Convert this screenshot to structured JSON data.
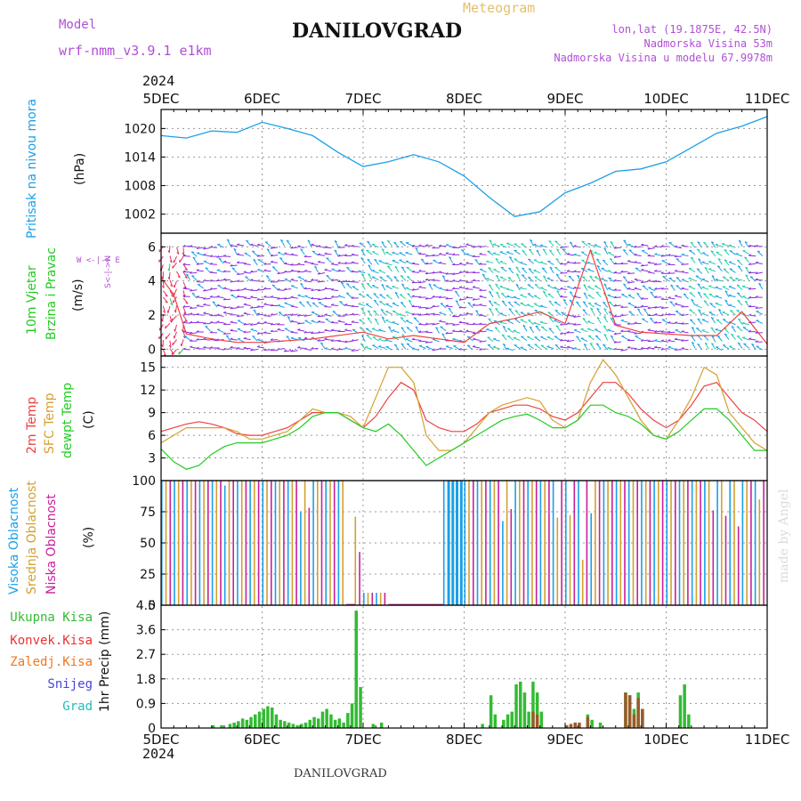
{
  "header": {
    "model_label": "Model",
    "model_value": "wrf-nmm_v3.9.1 e1km",
    "title": "DANILOVGRAD",
    "meteogram": "Meteogram",
    "lonlat": "lon,lat (19.1875E, 42.5N)",
    "alt": "Nadmorska Visina 53m",
    "alt_model": "Nadmorska Visina u modelu 67.9978m",
    "year_top": "2024",
    "year_bottom": "2024",
    "footer": "DANILOVGRAD",
    "watermark": "made by Angel"
  },
  "days": [
    "5DEC",
    "6DEC",
    "7DEC",
    "8DEC",
    "9DEC",
    "10DEC",
    "11DEC"
  ],
  "panel_labels": {
    "pressure": {
      "name": "Pritisak na nivou mora",
      "unit": "(hPa)"
    },
    "wind": {
      "name1": "10m Vjetar",
      "name2": "Brzina i Pravac",
      "unit": "(m/s)",
      "compass": "W <-|-> E",
      "compass_v": "S<-|->N"
    },
    "temp": {
      "t2": "2m Temp",
      "sfc": "SFC Temp",
      "dew": "dewpt Temp",
      "unit": "(C)"
    },
    "cloud": {
      "high": "Visoka Oblacnost",
      "mid": "Srednja Oblacnost",
      "low": "Niska Oblacnost",
      "unit": "(%)"
    },
    "precip": {
      "unit": "1hr Precip (mm)",
      "total": "Ukupna Kisa",
      "conv": "Konvek.Kisa",
      "frozen": "Zaledj.Kisa",
      "snow": "Snijeg",
      "hail": "Grad"
    }
  },
  "colors": {
    "pressure": "#1ba0e8",
    "t2": "#ee4040",
    "sfc": "#d4a030",
    "dew": "#22cc22",
    "high": "#1aa0e8",
    "mid": "#d4a030",
    "low": "#c8209a",
    "total": "#33bb33",
    "conv": "#ee3030",
    "frozen": "#ee7722",
    "snow": "#4444dd",
    "hail": "#22bbbb",
    "title_purple": "#b04fd6",
    "meteogram_gold": "#e3bf6a"
  },
  "chart_data": [
    {
      "type": "line",
      "name": "pressure",
      "ylim": [
        998,
        1024
      ],
      "yticks": [
        "1002",
        "1008",
        "1014",
        "1020"
      ],
      "x": [
        0,
        6,
        12,
        18,
        24,
        30,
        36,
        42,
        48,
        54,
        60,
        66,
        72,
        78,
        84,
        90,
        96,
        102,
        108,
        114,
        120,
        126,
        132,
        138,
        144
      ],
      "values": [
        1018.5,
        1018,
        1019.5,
        1019.2,
        1021.3,
        1020,
        1018.5,
        1015,
        1012,
        1013,
        1014.5,
        1013,
        1010,
        1005.5,
        1001.5,
        1002.5,
        1006.5,
        1008.5,
        1011,
        1011.5,
        1013,
        1016,
        1019,
        1020.5,
        1022.5
      ]
    },
    {
      "type": "line",
      "name": "wind",
      "ylim": [
        -0.4,
        6.8
      ],
      "yticks": [
        "0",
        "2",
        "4",
        "6"
      ],
      "x": [
        0,
        3,
        6,
        12,
        18,
        24,
        30,
        36,
        42,
        48,
        54,
        60,
        66,
        72,
        78,
        84,
        90,
        96,
        102,
        108,
        114,
        120,
        126,
        132,
        138,
        144
      ],
      "values": [
        4.2,
        3.2,
        0.9,
        0.6,
        0.4,
        0.4,
        0.5,
        0.6,
        0.8,
        1.0,
        0.6,
        0.8,
        0.6,
        0.4,
        1.5,
        1.8,
        2.2,
        1.5,
        5.8,
        1.4,
        1.0,
        0.9,
        0.8,
        0.8,
        2.2,
        0.3
      ]
    },
    {
      "type": "line",
      "name": "temperature",
      "ylim": [
        0,
        16.5
      ],
      "yticks": [
        "3",
        "6",
        "9",
        "12",
        "15"
      ],
      "x": [
        0,
        3,
        6,
        9,
        12,
        15,
        18,
        21,
        24,
        27,
        30,
        33,
        36,
        39,
        42,
        45,
        48,
        51,
        54,
        57,
        60,
        63,
        66,
        69,
        72,
        75,
        78,
        81,
        84,
        87,
        90,
        93,
        96,
        99,
        102,
        105,
        108,
        111,
        114,
        117,
        120,
        123,
        126,
        129,
        132,
        135,
        138,
        141,
        144
      ],
      "series": [
        {
          "key": "t2",
          "values": [
            6.5,
            7,
            7.5,
            7.8,
            7.5,
            7,
            6.2,
            6,
            6,
            6.5,
            7,
            8,
            9,
            9,
            9,
            8,
            7,
            8.5,
            11,
            13,
            12,
            8,
            7,
            6.5,
            6.5,
            7.5,
            9,
            9.5,
            10,
            10,
            9.5,
            8.5,
            8,
            9,
            11,
            13,
            13,
            11.5,
            9.5,
            8,
            7,
            8,
            10,
            12.5,
            13,
            11,
            9,
            8,
            6.5
          ]
        },
        {
          "key": "sfc",
          "values": [
            5,
            6,
            7,
            7,
            7,
            7,
            6.5,
            5.5,
            5.5,
            6,
            6.5,
            8,
            9.5,
            9,
            9,
            8.5,
            7,
            11,
            15,
            15,
            13,
            6,
            4,
            4,
            5,
            7,
            9,
            10,
            10.5,
            11,
            10.5,
            8,
            7,
            8,
            13,
            16,
            14,
            11,
            8,
            6,
            5.5,
            8,
            11,
            15,
            14,
            9,
            7,
            5,
            4
          ]
        },
        {
          "key": "dew",
          "values": [
            4.2,
            2.5,
            1.5,
            2,
            3.5,
            4.5,
            5,
            5,
            5,
            5.5,
            6,
            7,
            8.5,
            9,
            9,
            8,
            7,
            6.5,
            7.5,
            6,
            4,
            2,
            3,
            4,
            5,
            6,
            7,
            8,
            8.5,
            8.8,
            8,
            7,
            7,
            8,
            10,
            10,
            9,
            8.5,
            7.5,
            6,
            5.5,
            6.5,
            8,
            9.5,
            9.5,
            8,
            6,
            4,
            4
          ]
        }
      ]
    },
    {
      "type": "bar",
      "name": "cloud",
      "ylim": [
        0,
        100
      ],
      "yticks": [
        "0",
        "25",
        "50",
        "75",
        "100"
      ],
      "note": "high/mid/low cloud cover in percent, hourly bars"
    },
    {
      "type": "bar",
      "name": "precipitation",
      "ylim": [
        0,
        4.5
      ],
      "yticks": [
        "0",
        "0.9",
        "1.8",
        "2.7",
        "3.6",
        "4.5"
      ],
      "total_bars": [
        [
          12,
          0.1
        ],
        [
          14,
          0.1
        ],
        [
          16,
          0.15
        ],
        [
          17,
          0.2
        ],
        [
          18,
          0.25
        ],
        [
          19,
          0.35
        ],
        [
          20,
          0.3
        ],
        [
          21,
          0.4
        ],
        [
          22,
          0.5
        ],
        [
          23,
          0.6
        ],
        [
          24,
          0.7
        ],
        [
          25,
          0.8
        ],
        [
          26,
          0.75
        ],
        [
          27,
          0.5
        ],
        [
          28,
          0.3
        ],
        [
          29,
          0.25
        ],
        [
          30,
          0.2
        ],
        [
          31,
          0.15
        ],
        [
          32,
          0.1
        ],
        [
          33,
          0.15
        ],
        [
          34,
          0.2
        ],
        [
          35,
          0.3
        ],
        [
          36,
          0.4
        ],
        [
          37,
          0.35
        ],
        [
          38,
          0.6
        ],
        [
          39,
          0.7
        ],
        [
          40,
          0.5
        ],
        [
          41,
          0.3
        ],
        [
          42,
          0.35
        ],
        [
          43,
          0.2
        ],
        [
          44,
          0.55
        ],
        [
          45,
          0.9
        ],
        [
          46,
          4.3
        ],
        [
          47,
          1.5
        ],
        [
          50,
          0.15
        ],
        [
          52,
          0.2
        ],
        [
          76,
          0.15
        ],
        [
          78,
          1.2
        ],
        [
          79,
          0.5
        ],
        [
          81,
          0.3
        ],
        [
          82,
          0.5
        ],
        [
          83,
          0.6
        ],
        [
          84,
          1.6
        ],
        [
          85,
          1.7
        ],
        [
          86,
          1.3
        ],
        [
          87,
          0.6
        ],
        [
          88,
          1.7
        ],
        [
          89,
          1.3
        ],
        [
          90,
          0.6
        ],
        [
          96,
          0.1
        ],
        [
          98,
          0.2
        ],
        [
          101,
          0.5
        ],
        [
          102,
          0.3
        ],
        [
          104,
          0.2
        ],
        [
          110,
          1.3
        ],
        [
          111,
          1.2
        ],
        [
          112,
          0.7
        ],
        [
          113,
          1.3
        ],
        [
          114,
          0.7
        ],
        [
          123,
          1.2
        ],
        [
          124,
          1.6
        ],
        [
          125,
          0.5
        ]
      ],
      "conv_bars": [
        [
          88,
          0.6
        ],
        [
          89,
          0.5
        ],
        [
          96,
          0.1
        ],
        [
          97,
          0.15
        ],
        [
          98,
          0.2
        ],
        [
          99,
          0.2
        ],
        [
          101,
          0.4
        ],
        [
          110,
          1.3
        ],
        [
          111,
          1.2
        ],
        [
          112,
          0.5
        ],
        [
          113,
          1.1
        ],
        [
          114,
          0.7
        ]
      ]
    }
  ]
}
